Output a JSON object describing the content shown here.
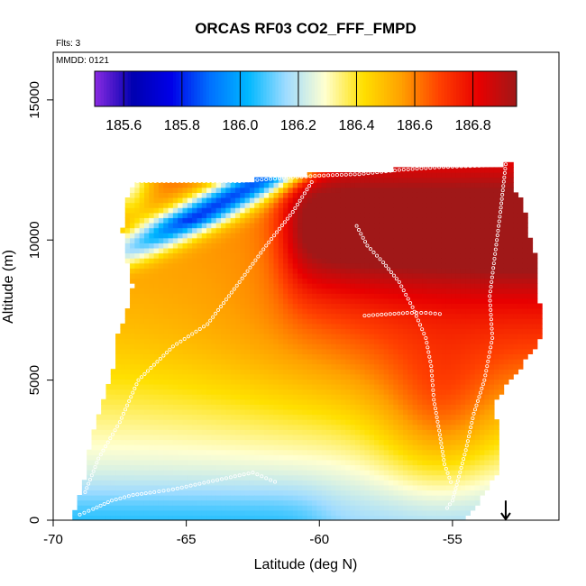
{
  "chart_data": {
    "type": "heatmap",
    "title": "ORCAS RF03 CO2_FFF_FMPD",
    "xlabel": "Latitude (deg N)",
    "ylabel": "Altitude (m)",
    "xlim": [
      -70,
      -51
    ],
    "ylim": [
      0,
      16700
    ],
    "x_ticks": [
      -70,
      -65,
      -60,
      -55
    ],
    "x_tick_labels": [
      "-70",
      "-65",
      "-60",
      "-55"
    ],
    "y_ticks": [
      0,
      5000,
      10000,
      15000
    ],
    "y_tick_labels": [
      "0",
      "5000",
      "10000",
      "15000"
    ],
    "annotations": {
      "flights": "Flts: 3",
      "mmdd": "MMDD: 0121"
    },
    "colorbar": {
      "min": 185.5,
      "max": 186.95,
      "ticks": [
        185.6,
        185.8,
        186.0,
        186.2,
        186.4,
        186.6,
        186.8
      ],
      "tick_labels": [
        "185.6",
        "185.8",
        "186.0",
        "186.2",
        "186.4",
        "186.6",
        "186.8"
      ],
      "palette": [
        "#8a2be2",
        "#0000b0",
        "#0000e8",
        "#0070ff",
        "#00b8ff",
        "#a0dcff",
        "#ffffd0",
        "#ffe000",
        "#ffa000",
        "#ff4000",
        "#e80000",
        "#a01818"
      ]
    },
    "field_description": "Interpolated CO2 curtain along flight track vs latitude and altitude",
    "domain_bounds": [
      [
        -69.2,
        0
      ],
      [
        -69.2,
        300
      ],
      [
        -68.8,
        1500
      ],
      [
        -68.6,
        2800
      ],
      [
        -68.2,
        4000
      ],
      [
        -67.7,
        5500
      ],
      [
        -67.7,
        6300
      ],
      [
        -67.2,
        7500
      ],
      [
        -67.0,
        8400
      ],
      [
        -67.2,
        9200
      ],
      [
        -67.4,
        10300
      ],
      [
        -67.2,
        11600
      ],
      [
        -66.8,
        12100
      ],
      [
        -63.0,
        12100
      ],
      [
        -61.0,
        12300
      ],
      [
        -57.5,
        12500
      ],
      [
        -52.8,
        12700
      ],
      [
        -52.7,
        11800
      ],
      [
        -52.3,
        11300
      ],
      [
        -52.2,
        10300
      ],
      [
        -51.8,
        9300
      ],
      [
        -51.7,
        7000
      ],
      [
        -51.6,
        6600
      ],
      [
        -52.0,
        6000
      ],
      [
        -52.6,
        5300
      ],
      [
        -53.4,
        4300
      ],
      [
        -53.3,
        3000
      ],
      [
        -53.2,
        1800
      ],
      [
        -53.6,
        1300
      ],
      [
        -54.0,
        700
      ],
      [
        -54.3,
        300
      ],
      [
        -54.5,
        0
      ]
    ],
    "flight_tracks": [
      {
        "name": "upper-leg",
        "points": [
          [
            -67.0,
            12100
          ],
          [
            -65.0,
            12100
          ],
          [
            -63.0,
            12100
          ],
          [
            -61.5,
            12200
          ],
          [
            -60.0,
            12300
          ],
          [
            -58.5,
            12350
          ],
          [
            -57.0,
            12500
          ],
          [
            -55.5,
            12600
          ],
          [
            -54.0,
            12650
          ],
          [
            -53.0,
            12700
          ]
        ]
      },
      {
        "name": "mid-leg",
        "points": [
          [
            -58.3,
            7300
          ],
          [
            -57.5,
            7350
          ],
          [
            -56.7,
            7400
          ],
          [
            -56.0,
            7400
          ],
          [
            -55.3,
            7350
          ]
        ]
      },
      {
        "name": "descent-north",
        "points": [
          [
            -53.0,
            12700
          ],
          [
            -53.2,
            11000
          ],
          [
            -53.4,
            9500
          ],
          [
            -53.6,
            8000
          ],
          [
            -53.5,
            6500
          ],
          [
            -53.8,
            5000
          ],
          [
            -54.2,
            3800
          ],
          [
            -54.5,
            2500
          ],
          [
            -54.8,
            1400
          ],
          [
            -55.0,
            700
          ],
          [
            -55.3,
            300
          ]
        ]
      },
      {
        "name": "low-leg",
        "points": [
          [
            -69.0,
            200
          ],
          [
            -68.5,
            400
          ],
          [
            -67.8,
            700
          ],
          [
            -67.0,
            900
          ],
          [
            -66.2,
            1000
          ],
          [
            -65.5,
            1100
          ],
          [
            -64.5,
            1300
          ],
          [
            -63.5,
            1500
          ],
          [
            -62.5,
            1700
          ],
          [
            -61.5,
            1300
          ]
        ]
      },
      {
        "name": "climb-south",
        "points": [
          [
            -68.8,
            1000
          ],
          [
            -68.3,
            2200
          ],
          [
            -67.5,
            3500
          ],
          [
            -66.8,
            5000
          ],
          [
            -65.5,
            6200
          ],
          [
            -64.2,
            7000
          ],
          [
            -63.0,
            8500
          ],
          [
            -62.0,
            9800
          ],
          [
            -61.0,
            11000
          ],
          [
            -60.2,
            12200
          ]
        ]
      },
      {
        "name": "mid-profile",
        "points": [
          [
            -58.6,
            10500
          ],
          [
            -58.2,
            9800
          ],
          [
            -57.6,
            9200
          ],
          [
            -57.0,
            8500
          ],
          [
            -56.5,
            7600
          ],
          [
            -56.0,
            6500
          ],
          [
            -55.8,
            5500
          ],
          [
            -55.7,
            4300
          ],
          [
            -55.5,
            3200
          ],
          [
            -55.3,
            2000
          ],
          [
            -55.0,
            1200
          ]
        ]
      }
    ],
    "arrow_marker": {
      "latitude": -53.0,
      "altitude_top": 700,
      "altitude_bottom": 0,
      "direction": "down"
    }
  }
}
